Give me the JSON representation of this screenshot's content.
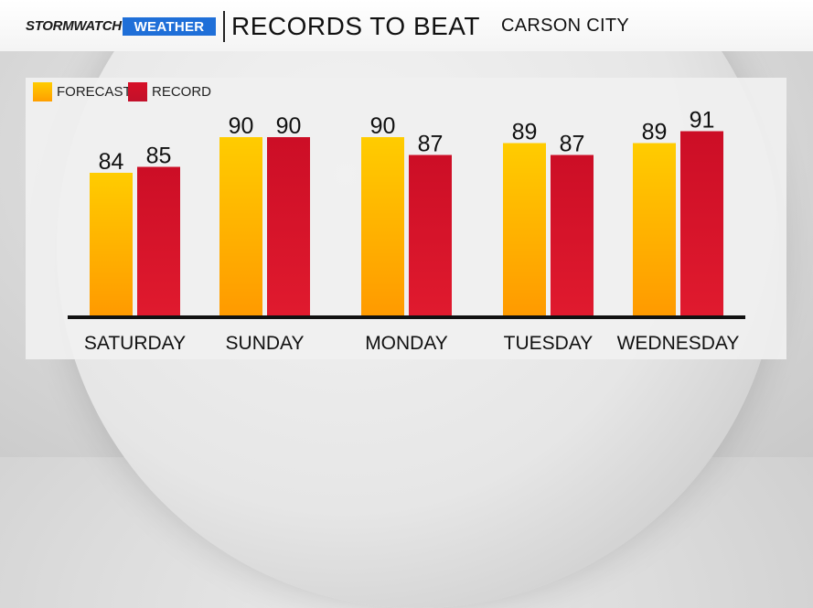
{
  "header": {
    "brand_storm": "STORMWATCH",
    "brand_weather": "WEATHER",
    "title": "RECORDS TO BEAT",
    "location": "CARSON CITY"
  },
  "colors": {
    "forecast_top": "#ffcc00",
    "forecast_bottom": "#ff9a00",
    "record_top": "#cc0e26",
    "record_bottom": "#e01a2e",
    "brand_blue": "#1f6fd8"
  },
  "chart_data": {
    "type": "bar",
    "title": "RECORDS TO BEAT",
    "categories": [
      "SATURDAY",
      "SUNDAY",
      "MONDAY",
      "TUESDAY",
      "WEDNESDAY"
    ],
    "series": [
      {
        "name": "FORECAST",
        "values": [
          84,
          90,
          90,
          89,
          89
        ]
      },
      {
        "name": "RECORD",
        "values": [
          85,
          90,
          87,
          87,
          91
        ]
      }
    ],
    "legend": "top-left",
    "grid": false,
    "data_labels": true
  }
}
